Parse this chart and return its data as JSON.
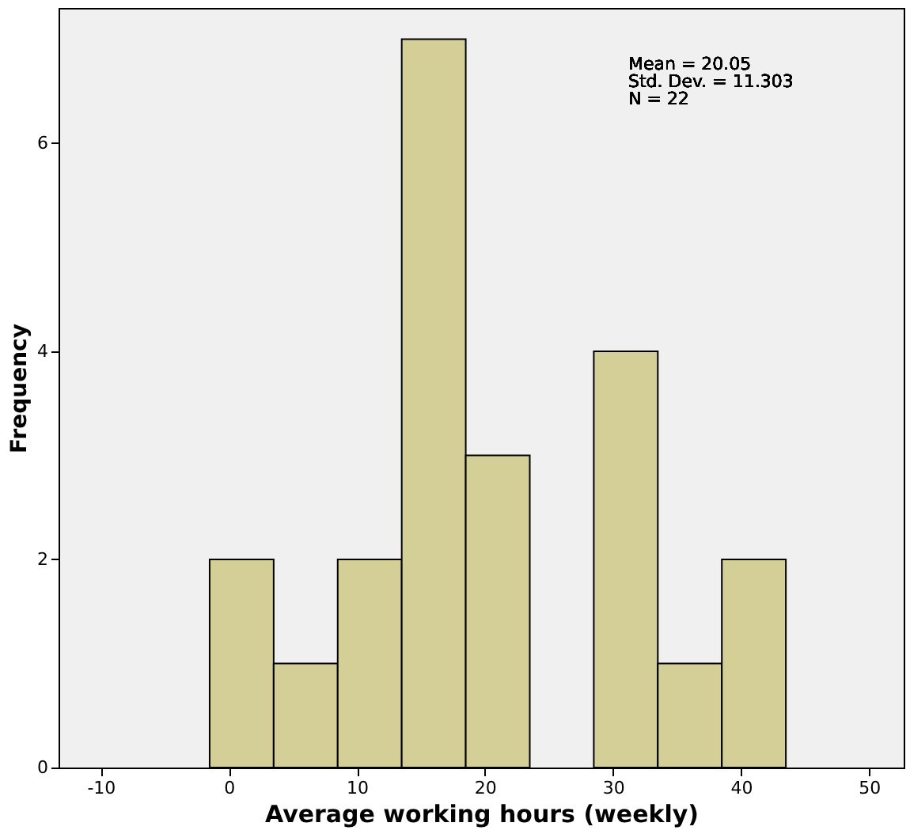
{
  "chart_data": {
    "type": "histogram",
    "xlabel": "Average working hours (weekly)",
    "ylabel": "Frequency",
    "bins": [
      -1.5,
      3.5,
      8.5,
      13.5,
      18.5,
      23.5,
      28.5,
      33.5,
      38.5,
      43.5
    ],
    "values": [
      2,
      1,
      2,
      7,
      3,
      0,
      4,
      1,
      2
    ],
    "color": "#d3cf97",
    "xlim": [
      -13.3,
      52.7
    ],
    "xticks": [
      -10,
      0,
      10,
      20,
      30,
      40,
      50
    ],
    "ylim": [
      0,
      7.3
    ],
    "yticks": [
      0,
      2,
      4,
      6
    ],
    "grid": false,
    "annotations": [
      "Mean = 20.05",
      "Std. Dev. = 11.303",
      "N = 22"
    ]
  }
}
